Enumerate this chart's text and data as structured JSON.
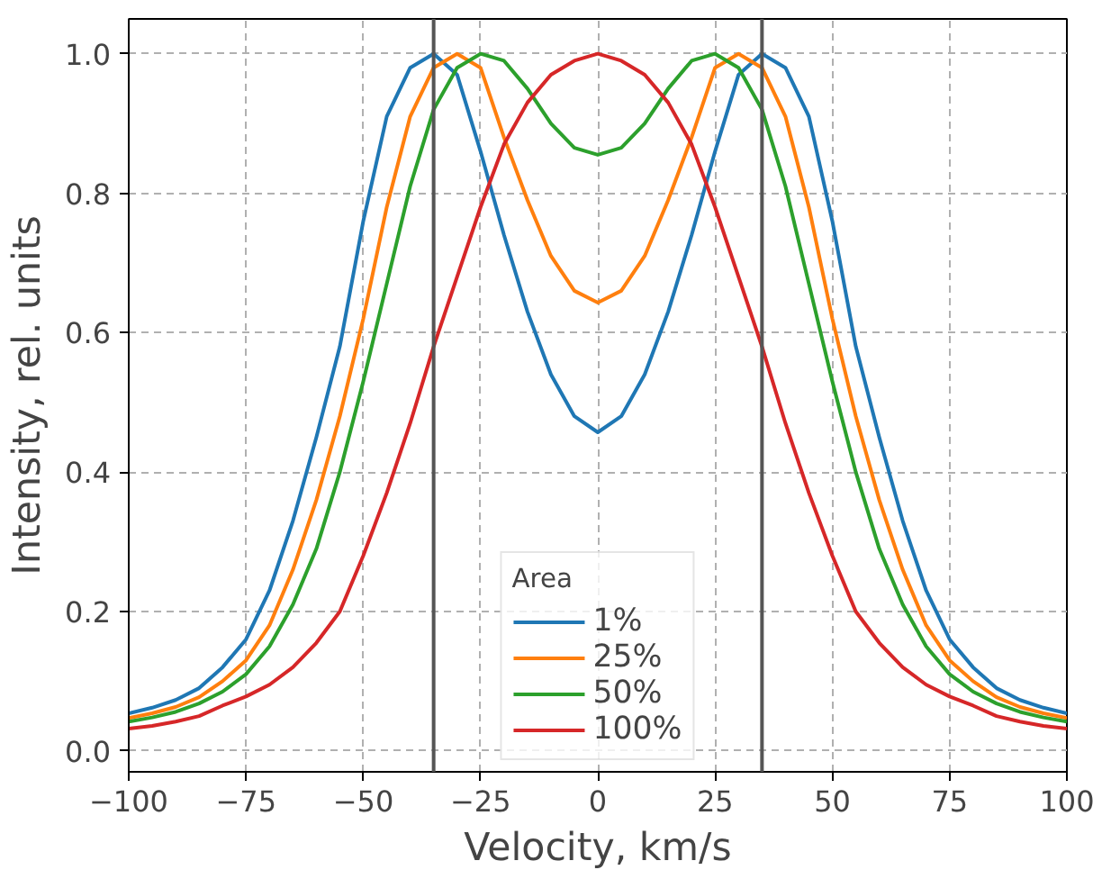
{
  "chart_data": {
    "type": "line",
    "xlabel": "Velocity, km/s",
    "ylabel": "Intensity, rel. units",
    "legend_title": "Area",
    "legend": "bottom",
    "grid": true,
    "line_style": "solid",
    "xlim": [
      -100,
      100
    ],
    "ylim": [
      -0.03,
      1.05
    ],
    "xticks": [
      {
        "value": -100,
        "label": "−100"
      },
      {
        "value": -75,
        "label": "−75"
      },
      {
        "value": -50,
        "label": "−50"
      },
      {
        "value": -25,
        "label": "−25"
      },
      0,
      25,
      50,
      75,
      100
    ],
    "yticks": [
      {
        "value": 0,
        "label": "0.0"
      },
      {
        "value": 0.2,
        "label": "0.2"
      },
      {
        "value": 0.4,
        "label": "0.4"
      },
      {
        "value": 0.6,
        "label": "0.6"
      },
      {
        "value": 0.8,
        "label": "0.8"
      },
      {
        "value": 1,
        "label": "1.0"
      }
    ],
    "ref_lines": [
      {
        "axis": "x",
        "value": -35,
        "color": "#555555"
      },
      {
        "axis": "x",
        "value": 35,
        "color": "#555555"
      }
    ],
    "x": [
      -100,
      -95,
      -90,
      -85,
      -80,
      -75,
      -70,
      -65,
      -60,
      -55,
      -50,
      -45,
      -40,
      -35,
      -30,
      -25,
      -20,
      -15,
      -10,
      -5,
      0,
      5,
      10,
      15,
      20,
      25,
      30,
      35,
      40,
      45,
      50,
      55,
      60,
      65,
      70,
      75,
      80,
      85,
      90,
      95,
      100
    ],
    "series": [
      {
        "name": "1%",
        "color": "#1f77b4",
        "values": [
          0.054,
          0.062,
          0.073,
          0.09,
          0.12,
          0.16,
          0.23,
          0.33,
          0.45,
          0.58,
          0.76,
          0.91,
          0.98,
          1.0,
          0.97,
          0.86,
          0.74,
          0.63,
          0.54,
          0.48,
          0.457,
          0.48,
          0.54,
          0.63,
          0.74,
          0.86,
          0.97,
          1.0,
          0.98,
          0.91,
          0.76,
          0.58,
          0.45,
          0.33,
          0.23,
          0.16,
          0.12,
          0.09,
          0.073,
          0.062,
          0.054
        ]
      },
      {
        "name": "25%",
        "color": "#ff7f0e",
        "values": [
          0.047,
          0.054,
          0.063,
          0.077,
          0.1,
          0.13,
          0.18,
          0.26,
          0.36,
          0.48,
          0.62,
          0.78,
          0.91,
          0.98,
          1.0,
          0.98,
          0.88,
          0.79,
          0.71,
          0.66,
          0.643,
          0.66,
          0.71,
          0.79,
          0.88,
          0.98,
          1.0,
          0.98,
          0.91,
          0.78,
          0.62,
          0.48,
          0.36,
          0.26,
          0.18,
          0.13,
          0.1,
          0.077,
          0.063,
          0.054,
          0.047
        ]
      },
      {
        "name": "50%",
        "color": "#2ca02c",
        "values": [
          0.042,
          0.048,
          0.056,
          0.068,
          0.085,
          0.11,
          0.15,
          0.21,
          0.29,
          0.4,
          0.53,
          0.67,
          0.81,
          0.92,
          0.98,
          1.0,
          0.99,
          0.95,
          0.9,
          0.865,
          0.855,
          0.865,
          0.9,
          0.95,
          0.99,
          1.0,
          0.98,
          0.92,
          0.81,
          0.67,
          0.53,
          0.4,
          0.29,
          0.21,
          0.15,
          0.11,
          0.085,
          0.068,
          0.056,
          0.048,
          0.042
        ]
      },
      {
        "name": "100%",
        "color": "#d62728",
        "values": [
          0.032,
          0.036,
          0.042,
          0.05,
          0.065,
          0.078,
          0.095,
          0.12,
          0.155,
          0.2,
          0.28,
          0.37,
          0.47,
          0.58,
          0.68,
          0.78,
          0.87,
          0.93,
          0.97,
          0.99,
          1.0,
          0.99,
          0.97,
          0.93,
          0.87,
          0.78,
          0.68,
          0.58,
          0.47,
          0.37,
          0.28,
          0.2,
          0.155,
          0.12,
          0.095,
          0.078,
          0.065,
          0.05,
          0.042,
          0.036,
          0.032
        ]
      }
    ]
  }
}
